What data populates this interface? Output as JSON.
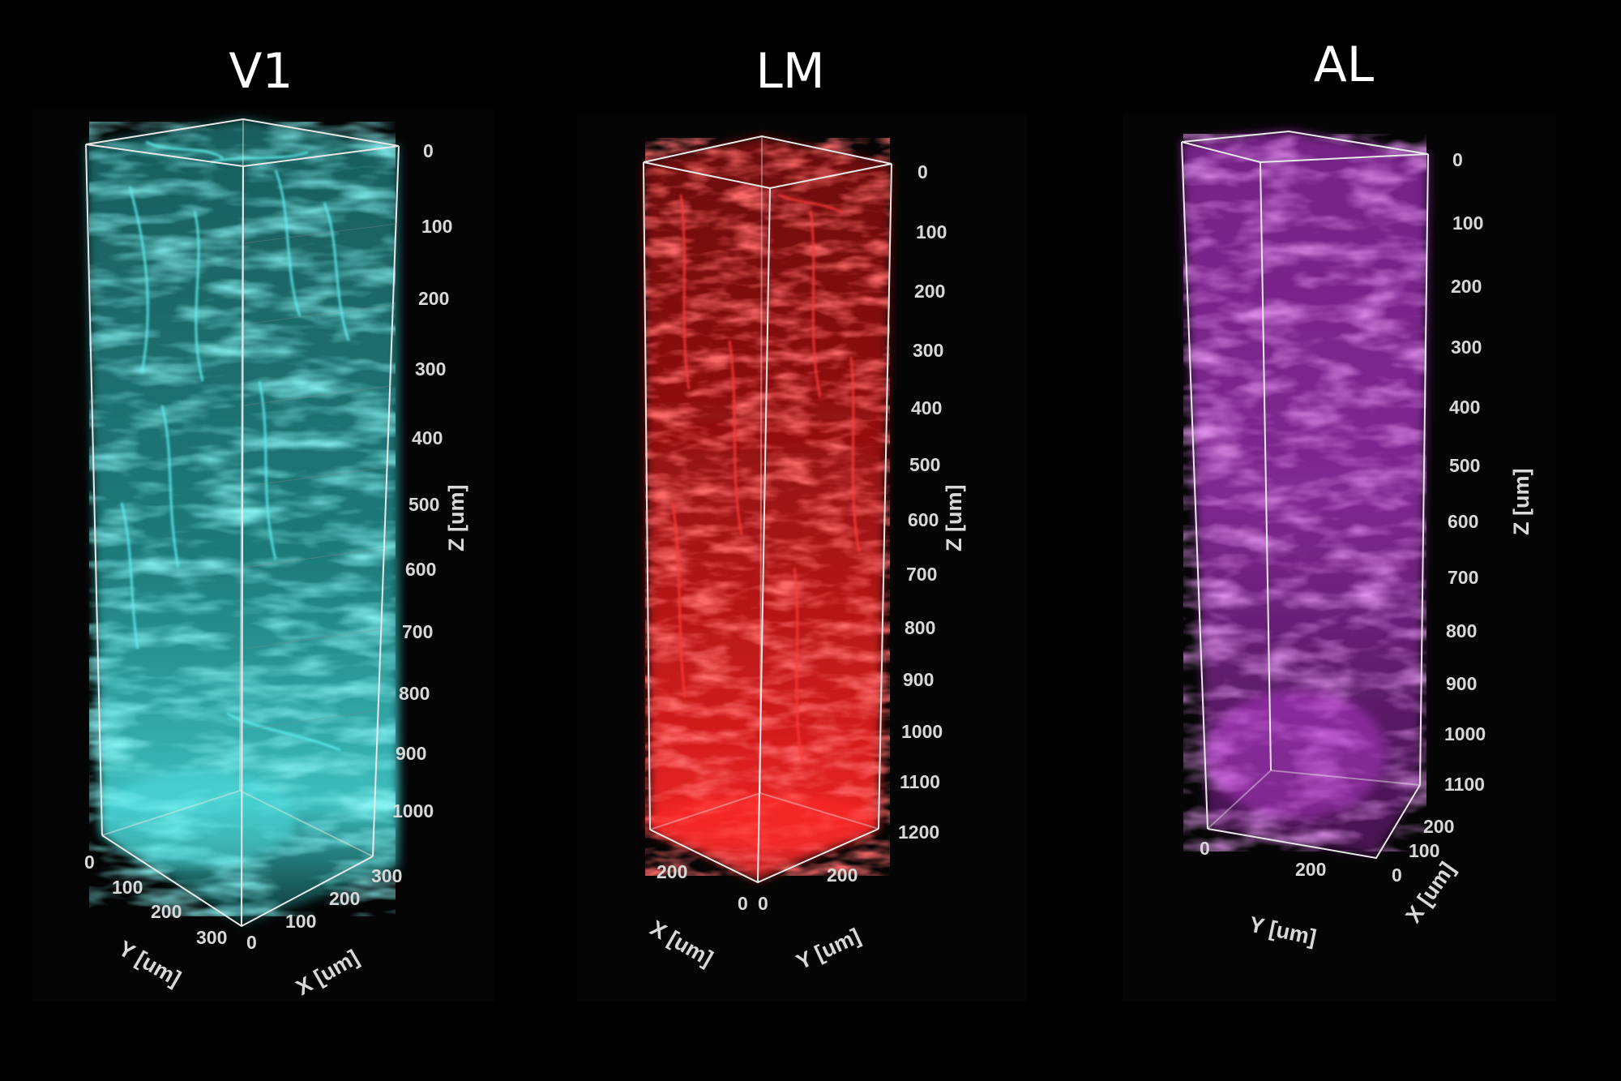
{
  "panels": [
    {
      "title": "V1",
      "color": "#3ed6d6",
      "z_axis_label": "Z [um]",
      "z_ticks": [
        "0",
        "100",
        "200",
        "300",
        "400",
        "500",
        "600",
        "700",
        "800",
        "900",
        "1000"
      ],
      "y_axis_label": "Y [um]",
      "y_ticks": [
        "0",
        "100",
        "200",
        "300"
      ],
      "x_axis_label": "X [um]",
      "x_ticks": [
        "0",
        "100",
        "200",
        "300"
      ]
    },
    {
      "title": "LM",
      "color": "#ff2222",
      "z_axis_label": "Z [um]",
      "z_ticks": [
        "0",
        "100",
        "200",
        "300",
        "400",
        "500",
        "600",
        "700",
        "800",
        "900",
        "1000",
        "1100",
        "1200"
      ],
      "x_axis_label": "X [um]",
      "x_ticks": [
        "200",
        "0"
      ],
      "y_axis_label": "Y [um]",
      "y_ticks": [
        "0",
        "200"
      ]
    },
    {
      "title": "AL",
      "color": "#c040d8",
      "z_axis_label": "Z [um]",
      "z_ticks": [
        "0",
        "100",
        "200",
        "300",
        "400",
        "500",
        "600",
        "700",
        "800",
        "900",
        "1000",
        "1100"
      ],
      "y_axis_label": "Y [um]",
      "y_ticks": [
        "0",
        "200"
      ],
      "x_axis_label": "X [um]",
      "x_ticks": [
        "0",
        "100",
        "200"
      ]
    }
  ]
}
